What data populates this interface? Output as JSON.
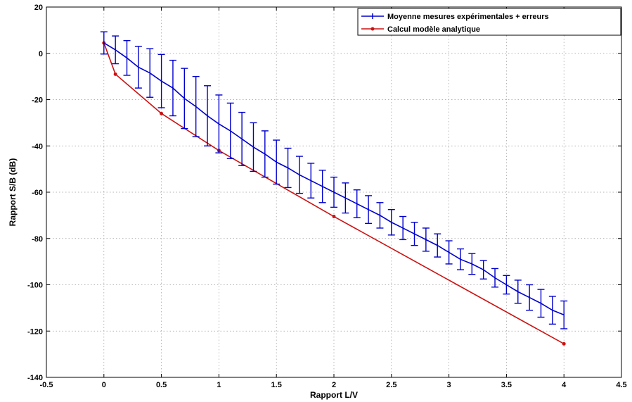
{
  "chart_data": {
    "type": "line",
    "title": "",
    "xlabel": "Rapport L/V",
    "ylabel": "Rapport S/B (dB)",
    "xlim": [
      -0.5,
      4.5
    ],
    "ylim": [
      -140,
      20
    ],
    "xticks": [
      -0.5,
      0,
      0.5,
      1,
      1.5,
      2,
      2.5,
      3,
      3.5,
      4,
      4.5
    ],
    "xtick_labels": [
      "-0.5",
      "0",
      "0.5",
      "1",
      "1.5",
      "2",
      "2.5",
      "3",
      "3.5",
      "4",
      "4.5"
    ],
    "yticks": [
      -140,
      -120,
      -100,
      -80,
      -60,
      -40,
      -20,
      0,
      20
    ],
    "ytick_labels": [
      "-140",
      "-120",
      "-100",
      "-80",
      "-60",
      "-40",
      "-20",
      "0",
      "20"
    ],
    "grid": true,
    "legend_position": "top-right",
    "series": [
      {
        "name": "Moyenne mesures expérimentales + erreurs",
        "color": "#0000cc",
        "marker": "+",
        "x": [
          0,
          0.1,
          0.2,
          0.3,
          0.4,
          0.5,
          0.6,
          0.7,
          0.8,
          0.9,
          1.0,
          1.1,
          1.2,
          1.3,
          1.4,
          1.5,
          1.6,
          1.7,
          1.8,
          1.9,
          2.0,
          2.1,
          2.2,
          2.3,
          2.4,
          2.5,
          2.6,
          2.7,
          2.8,
          2.9,
          3.0,
          3.1,
          3.2,
          3.3,
          3.4,
          3.5,
          3.6,
          3.7,
          3.8,
          3.9,
          4.0
        ],
        "y": [
          4.5,
          1.5,
          -2,
          -6,
          -8.5,
          -12,
          -15,
          -19.5,
          -23,
          -27,
          -30.5,
          -33.5,
          -37,
          -40.5,
          -43.5,
          -47,
          -49.5,
          -52.5,
          -55,
          -57.5,
          -60,
          -62.5,
          -65,
          -67.5,
          -70,
          -73,
          -75.5,
          -78,
          -80.5,
          -83,
          -86,
          -89,
          -91,
          -93.5,
          -97,
          -100,
          -103,
          -105.5,
          -108,
          -111,
          -113
        ],
        "err": [
          4.8,
          6,
          7.5,
          9,
          10.5,
          11.5,
          12,
          13,
          13,
          13,
          12.5,
          12,
          11.5,
          10.5,
          10,
          9.5,
          8.5,
          8,
          7.5,
          7,
          6.5,
          6.5,
          6,
          6,
          5.5,
          5.5,
          5,
          5,
          5,
          5,
          5,
          4.5,
          4.5,
          4,
          4,
          4,
          5,
          5.5,
          6,
          6,
          6
        ]
      },
      {
        "name": "Calcul modèle analytique",
        "color": "#cc1111",
        "marker": "*",
        "x": [
          0,
          0.1,
          0.5,
          1.0,
          2.0,
          4.0
        ],
        "y": [
          4.5,
          -9,
          -26,
          -42,
          -70.5,
          -125.5
        ]
      }
    ]
  }
}
